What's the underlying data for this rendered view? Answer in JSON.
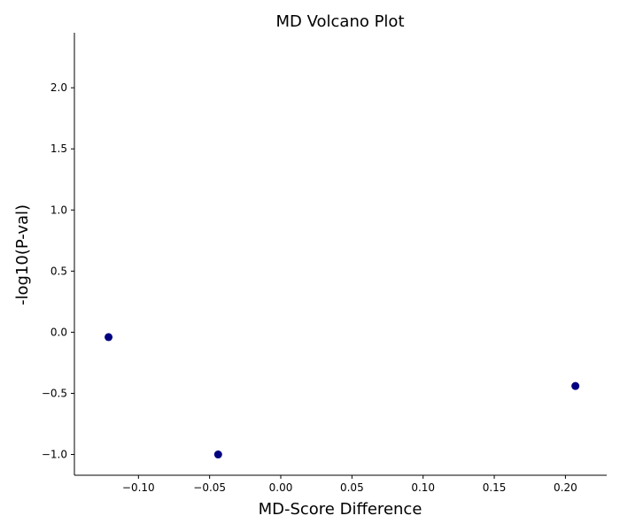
{
  "chart_data": {
    "type": "scatter",
    "title": "MD Volcano Plot",
    "xlabel": "MD-Score Difference",
    "ylabel": "-log10(P-val)",
    "xlim": [
      -0.145,
      0.229
    ],
    "ylim": [
      -1.17,
      2.45
    ],
    "xticks": [
      -0.1,
      -0.05,
      0.0,
      0.05,
      0.1,
      0.15,
      0.2
    ],
    "xtick_labels": [
      "−0.10",
      "−0.05",
      "0.00",
      "0.05",
      "0.10",
      "0.15",
      "0.20"
    ],
    "yticks": [
      -1.0,
      -0.5,
      0.0,
      0.5,
      1.0,
      1.5,
      2.0
    ],
    "ytick_labels": [
      "−1.0",
      "−0.5",
      "0.0",
      "0.5",
      "1.0",
      "1.5",
      "2.0"
    ],
    "grid": false,
    "point_color": "#000080",
    "points": [
      {
        "x": -0.121,
        "y": -0.04
      },
      {
        "x": -0.044,
        "y": -1.0
      },
      {
        "x": 0.207,
        "y": -0.44
      }
    ]
  }
}
